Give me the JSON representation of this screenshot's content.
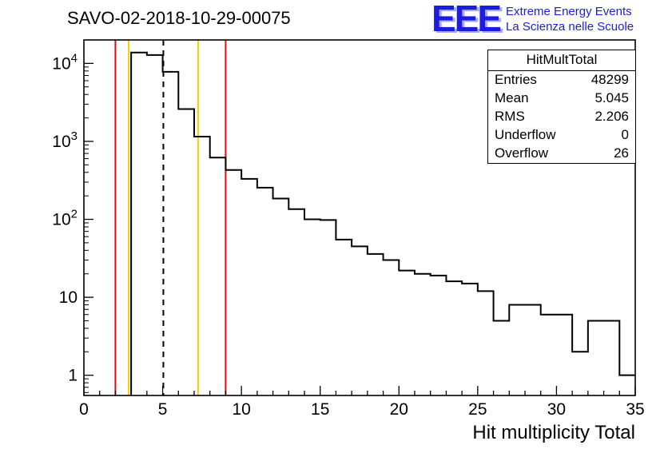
{
  "header": {
    "title": "SAVO-02-2018-10-29-00075"
  },
  "logo": {
    "acronym": "EEE",
    "line1": "Extreme Energy Events",
    "line2": "La Scienza nelle Scuole",
    "blue": "#1c1ce0",
    "shadow_blue": "#a9a9f2"
  },
  "stats_box": {
    "title": "HitMultTotal",
    "rows": [
      {
        "label": "Entries",
        "value": "48299"
      },
      {
        "label": "Mean",
        "value": "5.045"
      },
      {
        "label": "RMS",
        "value": "2.206"
      },
      {
        "label": "Underflow",
        "value": "0"
      },
      {
        "label": "Overflow",
        "value": "26"
      }
    ]
  },
  "chart_data": {
    "type": "bar",
    "subtype": "step-histogram",
    "title": "SAVO-02-2018-10-29-00075",
    "xlabel": "Hit multiplicity Total",
    "ylabel": "",
    "xlim": [
      0,
      35
    ],
    "ylim": [
      0.55,
      20000
    ],
    "yscale": "log",
    "grid": false,
    "legend": "none",
    "bin_start": 0,
    "bin_width": 1,
    "values": [
      0,
      0,
      0,
      13800,
      12800,
      7800,
      2600,
      1150,
      620,
      430,
      330,
      255,
      185,
      135,
      100,
      98,
      55,
      45,
      36,
      30,
      22,
      20,
      19,
      16,
      15,
      12,
      5,
      8,
      8,
      6,
      6,
      2,
      5,
      5,
      1
    ],
    "x_major_ticks": [
      0,
      5,
      10,
      15,
      20,
      25,
      30,
      35
    ],
    "y_major_ticks": [
      1,
      10,
      100,
      1000,
      10000
    ],
    "y_tick_labels": [
      "1",
      "10",
      "10^2",
      "10^3",
      "10^4"
    ],
    "line_color": "#000000",
    "marker_lines": [
      {
        "name": "red-low",
        "x": 2.0,
        "color": "#ff0000",
        "style": "solid"
      },
      {
        "name": "yellow-low",
        "x": 2.84,
        "color": "#ffcc00",
        "style": "solid"
      },
      {
        "name": "mean-dashed",
        "x": 5.045,
        "color": "#000000",
        "style": "dashed"
      },
      {
        "name": "yellow-high",
        "x": 7.25,
        "color": "#ffcc00",
        "style": "solid"
      },
      {
        "name": "red-high",
        "x": 9.0,
        "color": "#ff0000",
        "style": "solid"
      }
    ],
    "stats": {
      "entries": 48299,
      "mean": 5.045,
      "rms": 2.206,
      "underflow": 0,
      "overflow": 26
    }
  }
}
